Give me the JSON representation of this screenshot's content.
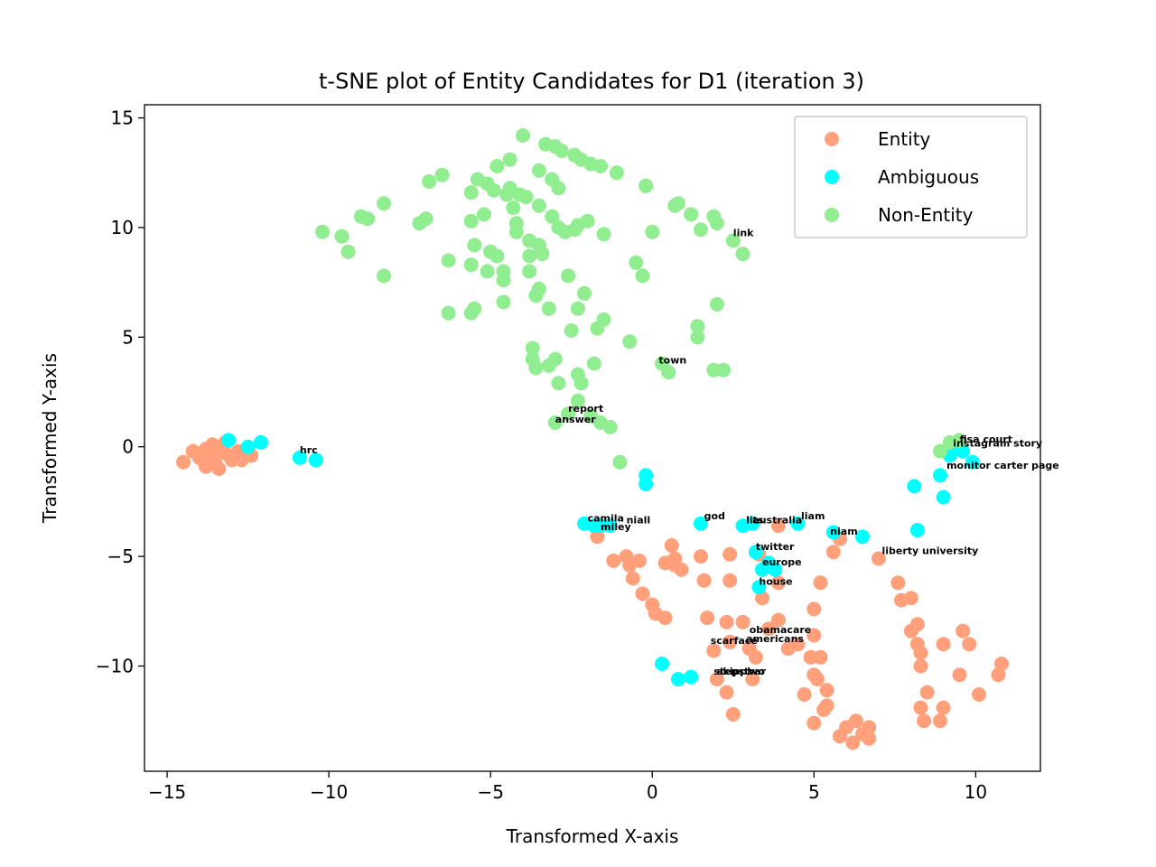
{
  "chart_data": {
    "type": "scatter",
    "title": "t-SNE plot of Entity Candidates for D1 (iteration 3)",
    "xlabel": "Transformed X-axis",
    "ylabel": "Transformed Y-axis",
    "xlim": [
      -15.7,
      12.0
    ],
    "ylim": [
      -14.8,
      15.6
    ],
    "xticks": [
      -15,
      -10,
      -5,
      0,
      5,
      10
    ],
    "yticks": [
      -10,
      -5,
      0,
      5,
      10,
      15
    ],
    "xtick_labels": [
      "−15",
      "−10",
      "−5",
      "0",
      "5",
      "10"
    ],
    "ytick_labels": [
      "−10",
      "−5",
      "0",
      "5",
      "10",
      "15"
    ],
    "legend_position": "top-right",
    "grid": false,
    "series": [
      {
        "name": "Entity",
        "color": "#FFA07A",
        "points": [
          [
            -14.5,
            -0.7
          ],
          [
            -14.2,
            -0.2
          ],
          [
            -14.0,
            -0.5
          ],
          [
            -13.8,
            -0.9
          ],
          [
            -13.8,
            -0.1
          ],
          [
            -13.6,
            -0.4
          ],
          [
            -13.5,
            -0.8
          ],
          [
            -13.4,
            -1.0
          ],
          [
            -13.4,
            0.0
          ],
          [
            -13.2,
            -0.3
          ],
          [
            -13.0,
            -0.6
          ],
          [
            -12.8,
            -0.2
          ],
          [
            -12.7,
            -0.6
          ],
          [
            -12.4,
            -0.4
          ],
          [
            -13.6,
            0.1
          ],
          [
            -13.2,
            0.2
          ],
          [
            -1.7,
            -4.1
          ],
          [
            -1.2,
            -5.2
          ],
          [
            -0.8,
            -5.0
          ],
          [
            -0.7,
            -5.4
          ],
          [
            -0.6,
            -6.0
          ],
          [
            -0.4,
            -5.2
          ],
          [
            -0.3,
            -6.7
          ],
          [
            0.0,
            -7.2
          ],
          [
            0.1,
            -7.6
          ],
          [
            0.4,
            -7.8
          ],
          [
            0.4,
            -5.3
          ],
          [
            0.6,
            -4.5
          ],
          [
            0.7,
            -5.1
          ],
          [
            0.7,
            -5.4
          ],
          [
            0.9,
            -5.6
          ],
          [
            1.5,
            -5.0
          ],
          [
            1.6,
            -6.1
          ],
          [
            1.7,
            -7.8
          ],
          [
            1.9,
            -9.3
          ],
          [
            2.0,
            -10.6
          ],
          [
            2.3,
            -11.2
          ],
          [
            2.3,
            -8.0
          ],
          [
            2.4,
            -4.9
          ],
          [
            2.4,
            -6.1
          ],
          [
            2.4,
            -8.9
          ],
          [
            2.5,
            -12.2
          ],
          [
            2.8,
            -8.0
          ],
          [
            3.0,
            -9.2
          ],
          [
            3.1,
            -10.6
          ],
          [
            3.2,
            -9.6
          ],
          [
            3.3,
            -4.9
          ],
          [
            3.4,
            -6.9
          ],
          [
            3.6,
            -8.3
          ],
          [
            3.9,
            -3.6
          ],
          [
            3.9,
            -6.2
          ],
          [
            3.9,
            -7.9
          ],
          [
            4.2,
            -9.2
          ],
          [
            4.5,
            -9.0
          ],
          [
            4.7,
            -11.3
          ],
          [
            4.9,
            -9.6
          ],
          [
            5.0,
            -10.4
          ],
          [
            5.0,
            -8.6
          ],
          [
            5.0,
            -12.6
          ],
          [
            5.0,
            -7.4
          ],
          [
            5.1,
            -10.6
          ],
          [
            5.2,
            -6.2
          ],
          [
            5.2,
            -9.6
          ],
          [
            5.3,
            -12.0
          ],
          [
            5.4,
            -11.1
          ],
          [
            5.4,
            -11.8
          ],
          [
            5.6,
            -4.8
          ],
          [
            5.8,
            -4.2
          ],
          [
            5.8,
            -13.2
          ],
          [
            6.0,
            -12.8
          ],
          [
            6.2,
            -13.5
          ],
          [
            6.3,
            -12.5
          ],
          [
            6.5,
            -13.1
          ],
          [
            6.7,
            -12.8
          ],
          [
            6.7,
            -13.3
          ],
          [
            7.0,
            -5.1
          ],
          [
            7.6,
            -6.2
          ],
          [
            7.7,
            -7.0
          ],
          [
            8.0,
            -6.9
          ],
          [
            8.0,
            -8.4
          ],
          [
            8.2,
            -8.1
          ],
          [
            8.2,
            -9.0
          ],
          [
            8.3,
            -9.4
          ],
          [
            8.3,
            -10.0
          ],
          [
            8.3,
            -11.9
          ],
          [
            8.4,
            -12.5
          ],
          [
            8.5,
            -11.2
          ],
          [
            8.9,
            -12.5
          ],
          [
            9.0,
            -11.9
          ],
          [
            9.0,
            -9.0
          ],
          [
            9.5,
            -10.4
          ],
          [
            9.6,
            -8.4
          ],
          [
            9.8,
            -9.0
          ],
          [
            10.1,
            -11.3
          ],
          [
            10.7,
            -10.4
          ],
          [
            10.8,
            -9.9
          ]
        ]
      },
      {
        "name": "Ambiguous",
        "color": "#00FFFF",
        "points": [
          [
            -13.1,
            0.3
          ],
          [
            -12.5,
            0.0
          ],
          [
            -12.1,
            0.2
          ],
          [
            -10.9,
            -0.5
          ],
          [
            -10.4,
            -0.6
          ],
          [
            -2.1,
            -3.5
          ],
          [
            -1.8,
            -3.6
          ],
          [
            -1.6,
            -3.6
          ],
          [
            -1.3,
            -3.6
          ],
          [
            -0.2,
            -1.3
          ],
          [
            -0.2,
            -1.7
          ],
          [
            0.3,
            -9.9
          ],
          [
            0.8,
            -10.6
          ],
          [
            1.2,
            -10.5
          ],
          [
            1.5,
            -3.5
          ],
          [
            2.8,
            -3.6
          ],
          [
            3.1,
            -3.5
          ],
          [
            3.2,
            -4.8
          ],
          [
            3.3,
            -6.4
          ],
          [
            3.4,
            -5.6
          ],
          [
            3.6,
            -5.3
          ],
          [
            3.8,
            -5.6
          ],
          [
            4.5,
            -3.5
          ],
          [
            5.6,
            -3.9
          ],
          [
            6.5,
            -4.1
          ],
          [
            8.1,
            -1.8
          ],
          [
            8.2,
            -3.8
          ],
          [
            8.9,
            -1.3
          ],
          [
            9.0,
            -2.3
          ],
          [
            9.2,
            -0.4
          ],
          [
            9.9,
            -0.7
          ],
          [
            9.4,
            -0.1
          ],
          [
            9.6,
            -0.2
          ]
        ]
      },
      {
        "name": "Non-Entity",
        "color": "#90EE90",
        "points": [
          [
            -10.2,
            9.8
          ],
          [
            -9.6,
            9.6
          ],
          [
            -9.4,
            8.9
          ],
          [
            -9.0,
            10.5
          ],
          [
            -8.8,
            10.4
          ],
          [
            -8.3,
            11.1
          ],
          [
            -8.3,
            7.8
          ],
          [
            -7.2,
            10.2
          ],
          [
            -7.0,
            10.4
          ],
          [
            -6.9,
            12.1
          ],
          [
            -6.5,
            12.4
          ],
          [
            -6.3,
            8.5
          ],
          [
            -6.3,
            6.1
          ],
          [
            -5.6,
            6.1
          ],
          [
            -5.6,
            8.3
          ],
          [
            -5.5,
            6.3
          ],
          [
            -5.5,
            9.2
          ],
          [
            -5.6,
            10.3
          ],
          [
            -5.6,
            11.6
          ],
          [
            -5.4,
            12.2
          ],
          [
            -5.2,
            10.6
          ],
          [
            -5.1,
            12.0
          ],
          [
            -5.1,
            8.0
          ],
          [
            -5.0,
            8.9
          ],
          [
            -4.9,
            11.7
          ],
          [
            -4.8,
            8.7
          ],
          [
            -4.8,
            12.8
          ],
          [
            -4.6,
            8.0
          ],
          [
            -4.6,
            7.6
          ],
          [
            -4.6,
            6.6
          ],
          [
            -4.5,
            11.5
          ],
          [
            -4.4,
            11.8
          ],
          [
            -4.4,
            13.1
          ],
          [
            -4.3,
            10.9
          ],
          [
            -4.2,
            9.8
          ],
          [
            -4.2,
            10.2
          ],
          [
            -4.1,
            11.5
          ],
          [
            -4.0,
            14.2
          ],
          [
            -3.9,
            11.4
          ],
          [
            -3.8,
            9.4
          ],
          [
            -3.8,
            8.7
          ],
          [
            -3.8,
            8.0
          ],
          [
            -3.7,
            4.5
          ],
          [
            -3.7,
            4.0
          ],
          [
            -3.6,
            3.6
          ],
          [
            -3.6,
            6.9
          ],
          [
            -3.5,
            7.2
          ],
          [
            -3.5,
            9.2
          ],
          [
            -3.5,
            11.0
          ],
          [
            -3.5,
            12.6
          ],
          [
            -3.4,
            8.8
          ],
          [
            -3.3,
            13.8
          ],
          [
            -3.2,
            3.7
          ],
          [
            -3.2,
            6.3
          ],
          [
            -3.1,
            12.2
          ],
          [
            -3.1,
            10.5
          ],
          [
            -3.0,
            13.7
          ],
          [
            -2.9,
            11.8
          ],
          [
            -2.9,
            10.0
          ],
          [
            -2.9,
            2.9
          ],
          [
            -2.8,
            13.5
          ],
          [
            -2.7,
            9.8
          ],
          [
            -2.6,
            7.8
          ],
          [
            -2.5,
            5.3
          ],
          [
            -2.4,
            13.3
          ],
          [
            -2.4,
            9.9
          ],
          [
            -2.3,
            10.1
          ],
          [
            -2.3,
            6.3
          ],
          [
            -2.3,
            3.3
          ],
          [
            -2.2,
            2.9
          ],
          [
            -2.2,
            13.1
          ],
          [
            -2.1,
            7.0
          ],
          [
            -2.0,
            10.3
          ],
          [
            -1.9,
            12.9
          ],
          [
            -1.8,
            3.8
          ],
          [
            -1.7,
            5.4
          ],
          [
            -1.6,
            12.8
          ],
          [
            -1.5,
            5.8
          ],
          [
            -1.5,
            9.7
          ],
          [
            -1.1,
            12.5
          ],
          [
            -1.0,
            -0.7
          ],
          [
            -0.7,
            4.8
          ],
          [
            -0.5,
            8.4
          ],
          [
            -0.3,
            7.8
          ],
          [
            -0.2,
            11.9
          ],
          [
            0.0,
            9.8
          ],
          [
            0.7,
            11.0
          ],
          [
            0.8,
            11.1
          ],
          [
            1.2,
            10.6
          ],
          [
            1.5,
            9.9
          ],
          [
            1.9,
            10.5
          ],
          [
            2.0,
            10.2
          ],
          [
            2.0,
            6.5
          ],
          [
            2.2,
            3.5
          ],
          [
            2.5,
            9.4
          ],
          [
            2.8,
            8.8
          ],
          [
            1.4,
            5.0
          ],
          [
            1.4,
            5.5
          ],
          [
            1.9,
            3.5
          ],
          [
            -2.3,
            2.1
          ],
          [
            -2.6,
            1.5
          ],
          [
            -3.0,
            1.1
          ],
          [
            -1.9,
            1.4
          ],
          [
            -1.6,
            1.1
          ],
          [
            -1.3,
            0.9
          ],
          [
            0.3,
            3.8
          ],
          [
            0.5,
            3.4
          ],
          [
            -3.0,
            4.0
          ],
          [
            9.2,
            0.2
          ],
          [
            9.5,
            0.3
          ],
          [
            8.9,
            -0.2
          ]
        ]
      }
    ],
    "annotations": [
      {
        "text": "hrc",
        "x": -10.9,
        "y": -0.3
      },
      {
        "text": "report",
        "x": -2.6,
        "y": 1.6
      },
      {
        "text": "answer",
        "x": -3.0,
        "y": 1.1
      },
      {
        "text": "town",
        "x": 0.2,
        "y": 3.8
      },
      {
        "text": "link",
        "x": 2.5,
        "y": 9.6
      },
      {
        "text": "fisa court",
        "x": 9.5,
        "y": 0.2
      },
      {
        "text": "instagram story",
        "x": 9.3,
        "y": 0.0
      },
      {
        "text": "monitor carter page",
        "x": 9.1,
        "y": -1.0
      },
      {
        "text": "camila",
        "x": -2.0,
        "y": -3.4
      },
      {
        "text": "miley",
        "x": -1.6,
        "y": -3.8
      },
      {
        "text": "niall",
        "x": -0.8,
        "y": -3.5
      },
      {
        "text": "god",
        "x": 1.6,
        "y": -3.3
      },
      {
        "text": "lits",
        "x": 2.9,
        "y": -3.5
      },
      {
        "text": "australia",
        "x": 3.1,
        "y": -3.5
      },
      {
        "text": "liam",
        "x": 4.6,
        "y": -3.3
      },
      {
        "text": "niam",
        "x": 5.5,
        "y": -4.0
      },
      {
        "text": "twitter",
        "x": 3.2,
        "y": -4.7
      },
      {
        "text": "liberty university",
        "x": 7.1,
        "y": -4.9
      },
      {
        "text": "europe",
        "x": 3.4,
        "y": -5.4
      },
      {
        "text": "house",
        "x": 3.3,
        "y": -6.3
      },
      {
        "text": "obamacare",
        "x": 3.0,
        "y": -8.5
      },
      {
        "text": "scarface",
        "x": 1.8,
        "y": -9.0
      },
      {
        "text": "americans",
        "x": 2.9,
        "y": -8.9
      },
      {
        "text": "stepstwo",
        "x": 1.9,
        "y": -10.4
      },
      {
        "text": "skippbar",
        "x": 2.0,
        "y": -10.4
      }
    ]
  }
}
